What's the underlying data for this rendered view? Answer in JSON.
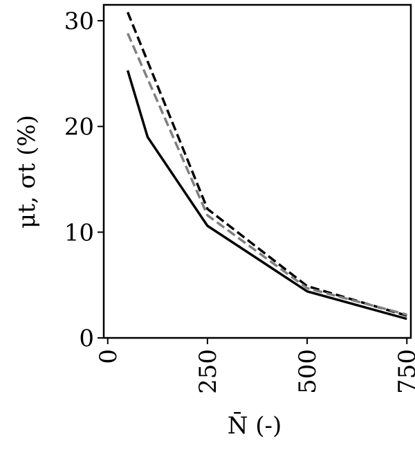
{
  "chart_data": {
    "type": "line",
    "xlabel": "N̄ (-)",
    "ylabel": "μt, σt (%)",
    "xlim": [
      -10,
      760
    ],
    "ylim": [
      0,
      31.5
    ],
    "x_ticks": [
      0,
      250,
      500,
      750
    ],
    "y_ticks": [
      0,
      10,
      20,
      30
    ],
    "grid": false,
    "legend": "none",
    "series": [
      {
        "style": "solid",
        "color": "#000000",
        "x": [
          50,
          100,
          250,
          500,
          750
        ],
        "y": [
          25.3,
          19.0,
          10.6,
          4.4,
          1.8
        ]
      },
      {
        "style": "dashed",
        "color": "#000000",
        "x": [
          50,
          250,
          500,
          750
        ],
        "y": [
          30.8,
          12.2,
          4.9,
          2.1
        ]
      },
      {
        "style": "dashed",
        "color": "#808080",
        "x": [
          50,
          250,
          500,
          750
        ],
        "y": [
          28.8,
          11.6,
          4.7,
          2.2
        ]
      }
    ]
  }
}
